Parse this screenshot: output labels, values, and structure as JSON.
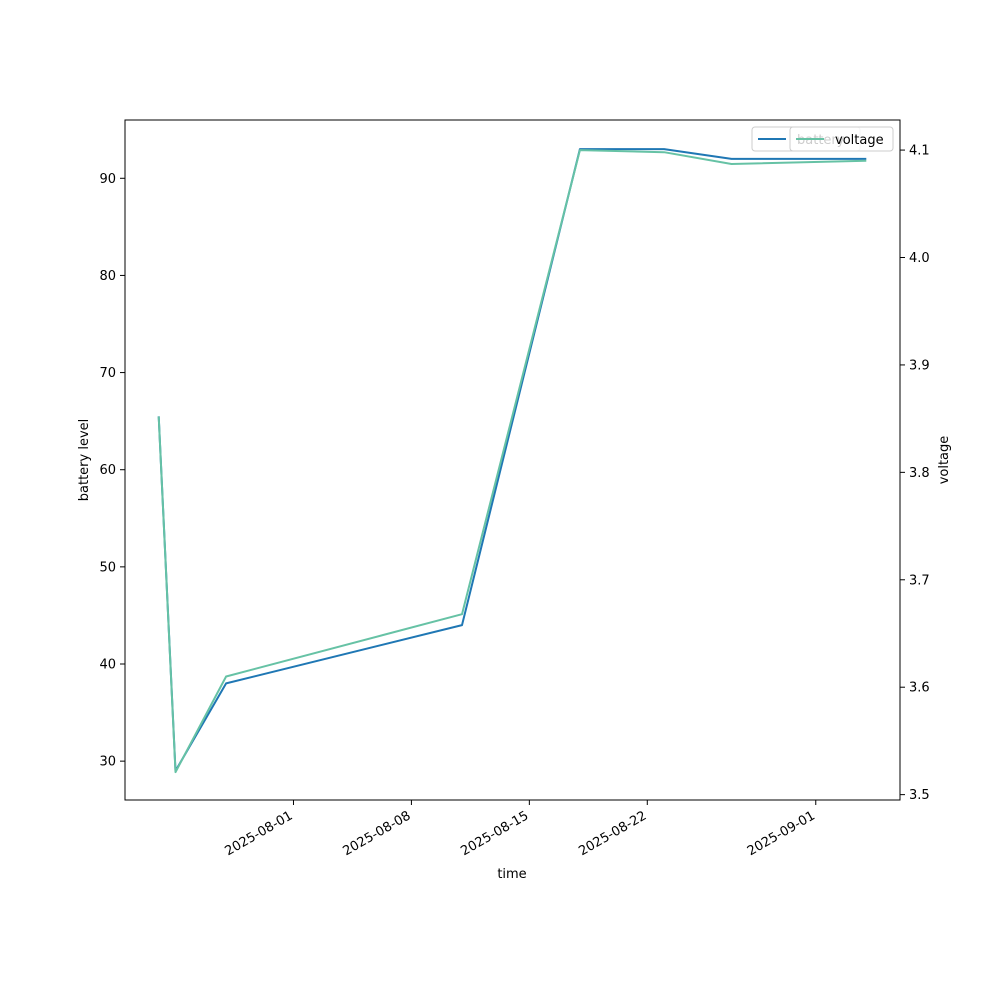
{
  "chart_data": {
    "type": "line",
    "title": "",
    "xlabel": "time",
    "ylabel_left": "battery level",
    "ylabel_right": "voltage",
    "xlim": [
      "2025-07-22",
      "2025-09-06"
    ],
    "ylim_left": [
      26,
      96
    ],
    "ylim_right": [
      3.495,
      4.128
    ],
    "x_ticks": [
      "2025-08-01",
      "2025-08-08",
      "2025-08-15",
      "2025-08-22",
      "2025-09-01"
    ],
    "y_ticks_left": [
      30,
      40,
      50,
      60,
      70,
      80,
      90
    ],
    "y_ticks_right": [
      "3.5",
      "3.6",
      "3.7",
      "3.8",
      "3.9",
      "4.0",
      "4.1"
    ],
    "grid": false,
    "legend_placement": "top-right",
    "series": [
      {
        "name": "battery",
        "axis": "left",
        "color": "#1f77b4",
        "x": [
          "2025-07-24",
          "2025-07-25",
          "2025-07-28",
          "2025-08-11",
          "2025-08-18",
          "2025-08-23",
          "2025-08-27",
          "2025-09-04"
        ],
        "y": [
          65.5,
          29,
          38,
          44,
          93,
          93,
          92,
          92
        ]
      },
      {
        "name": "voltage",
        "axis": "right",
        "color": "#66c2a5",
        "x": [
          "2025-07-24",
          "2025-07-25",
          "2025-07-28",
          "2025-08-11",
          "2025-08-18",
          "2025-08-23",
          "2025-08-27",
          "2025-09-04"
        ],
        "y": [
          3.852,
          3.521,
          3.61,
          3.668,
          4.1,
          4.098,
          4.087,
          4.09
        ]
      }
    ]
  }
}
